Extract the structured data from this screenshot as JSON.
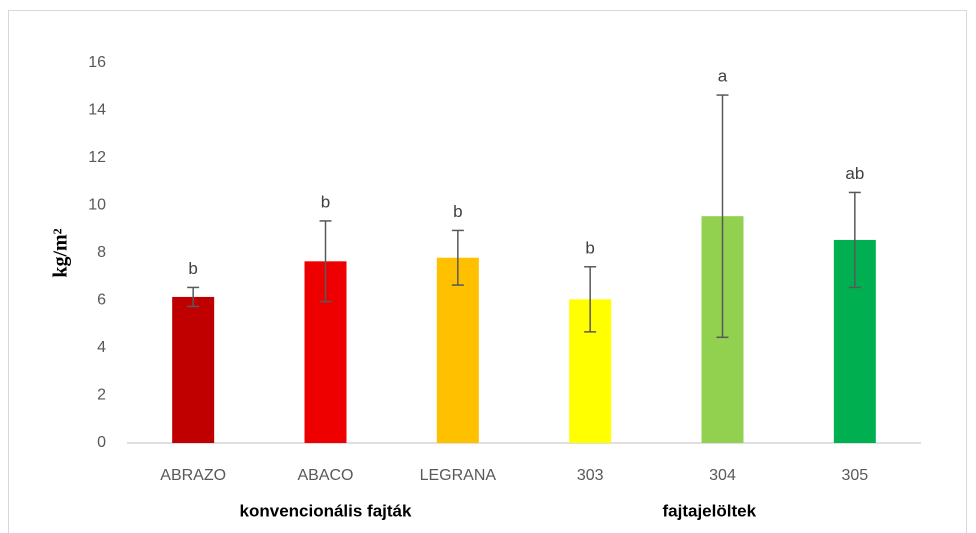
{
  "chart_data": {
    "type": "bar",
    "y_label": "kg/m²",
    "categories": [
      "ABRAZO",
      "ABACO",
      "LEGRANA",
      "303",
      "304",
      "305"
    ],
    "values": [
      6.15,
      7.65,
      7.8,
      6.05,
      9.55,
      8.55
    ],
    "errors": [
      0.4,
      1.7,
      1.15,
      1.37,
      5.1,
      2.0
    ],
    "colors": [
      "#c00000",
      "#ee0000",
      "#ffc000",
      "#ffff00",
      "#92d050",
      "#00b050"
    ],
    "annotations": [
      "b",
      "b",
      "b",
      "b",
      "a",
      "ab"
    ],
    "group_labels": [
      "konvencionális fajták",
      "fajtajelöltek"
    ],
    "ylim": [
      0,
      16
    ],
    "yticks": [
      0,
      2,
      4,
      6,
      8,
      10,
      12,
      14,
      16
    ],
    "grid": false
  }
}
